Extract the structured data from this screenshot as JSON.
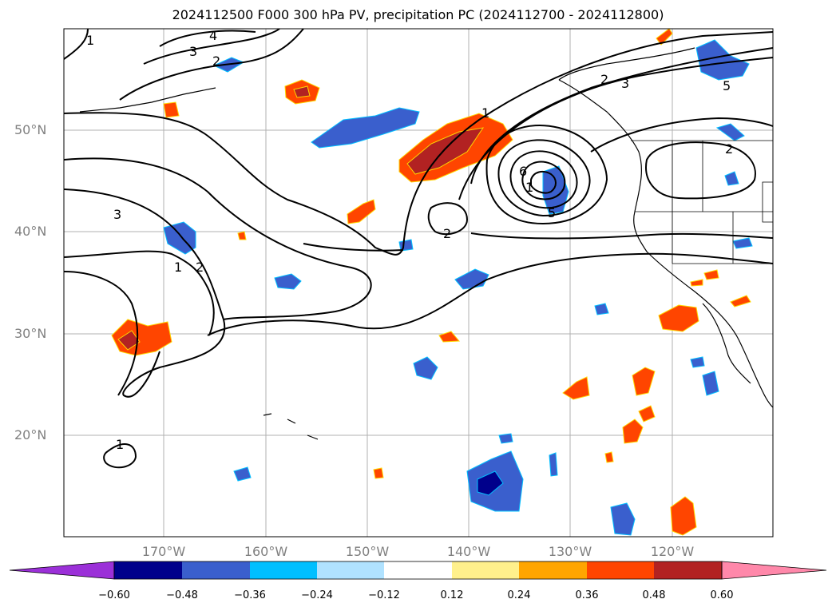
{
  "title": "2024112500 F000 300 hPa PV, precipitation PC (2024112700 - 2024112800)",
  "map": {
    "lat_labels": [
      "50°N",
      "40°N",
      "30°N",
      "20°N"
    ],
    "lon_labels": [
      "170°W",
      "160°W",
      "150°W",
      "140°W",
      "130°W",
      "120°W"
    ],
    "contour_labels": [
      "1",
      "4",
      "3",
      "2",
      "3",
      "1",
      "2",
      "2",
      "3",
      "6",
      "5",
      "2",
      "5",
      "1",
      "1",
      "2",
      "1"
    ],
    "gridlines": true
  },
  "colorbar": {
    "ticks": [
      "−0.60",
      "−0.48",
      "−0.36",
      "−0.24",
      "−0.12",
      "0.12",
      "0.24",
      "0.36",
      "0.48",
      "0.60"
    ],
    "colors": [
      "#9b30d8",
      "#00008b",
      "#3a5fcd",
      "#00bfff",
      "#b0e2ff",
      "#ffffff",
      "#fff08c",
      "#ffa500",
      "#ff4500",
      "#b22222",
      "#ff88aa"
    ]
  }
}
